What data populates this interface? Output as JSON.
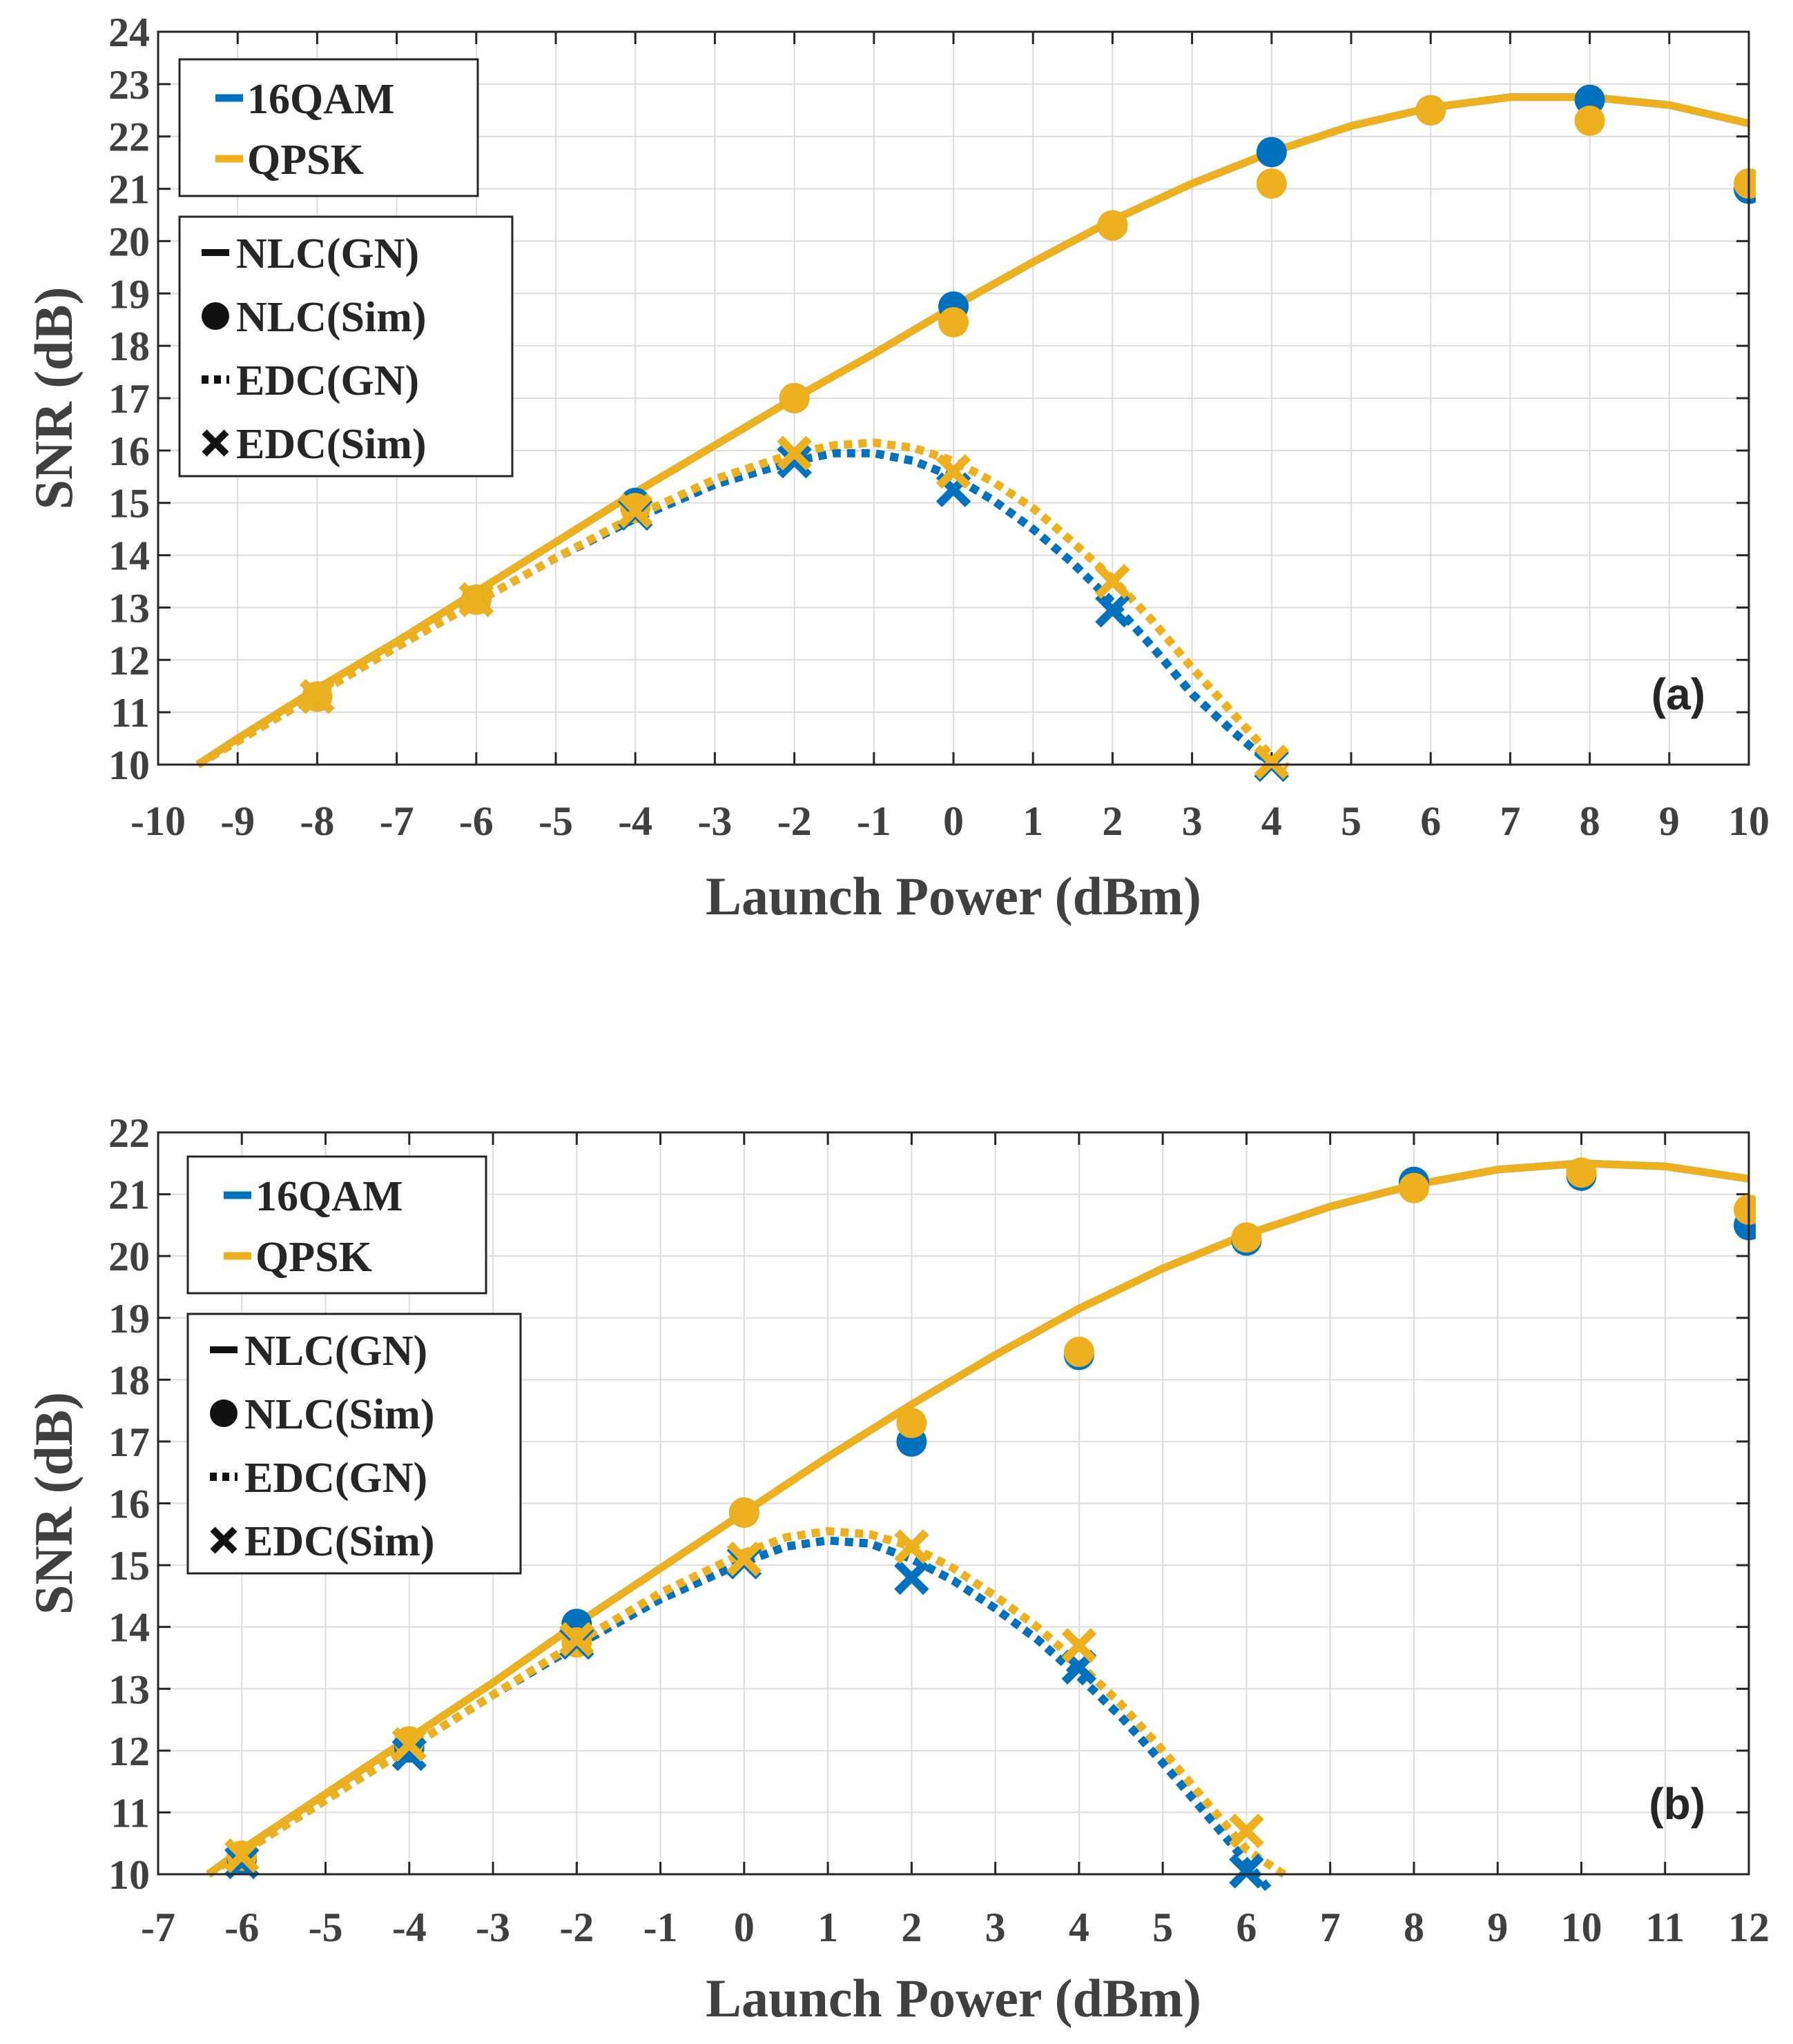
{
  "colors": {
    "16QAM": "#0072BD",
    "QPSK": "#EDB120",
    "axis": "#404040",
    "grid": "#dcdcdc"
  },
  "legend": {
    "format_entries": [
      {
        "label": "16QAM",
        "color_key": "16QAM"
      },
      {
        "label": "QPSK",
        "color_key": "QPSK"
      }
    ],
    "style_entries": [
      {
        "label": "NLC(GN)",
        "symbol": "solid-line"
      },
      {
        "label": "NLC(Sim)",
        "symbol": "circle-marker"
      },
      {
        "label": "EDC(GN)",
        "symbol": "dotted-line"
      },
      {
        "label": "EDC(Sim)",
        "symbol": "x-marker"
      }
    ]
  },
  "chart_data": [
    {
      "type": "line",
      "panel_label": "(a)",
      "xlabel": "Launch Power (dBm)",
      "ylabel": "SNR (dB)",
      "xlim": [
        -10,
        10
      ],
      "ylim": [
        10,
        24
      ],
      "xticks": [
        -10,
        -9,
        -8,
        -7,
        -6,
        -5,
        -4,
        -3,
        -2,
        -1,
        0,
        1,
        2,
        3,
        4,
        5,
        6,
        7,
        8,
        9,
        10
      ],
      "yticks": [
        10,
        11,
        12,
        13,
        14,
        15,
        16,
        17,
        18,
        19,
        20,
        21,
        22,
        23,
        24
      ],
      "grid": true,
      "legend_position": "top-left",
      "series": [
        {
          "name": "NLC(GN)",
          "format": "16QAM",
          "style": "solid",
          "x": [
            -9.5,
            -9,
            -8,
            -7,
            -6,
            -5,
            -4,
            -3,
            -2,
            -1,
            0,
            1,
            2,
            3,
            4,
            5,
            6,
            7,
            8,
            9,
            10
          ],
          "y": [
            10.0,
            10.5,
            11.45,
            12.35,
            13.3,
            14.25,
            15.2,
            16.1,
            17.0,
            17.85,
            18.75,
            19.6,
            20.4,
            21.1,
            21.7,
            22.2,
            22.55,
            22.75,
            22.75,
            22.6,
            22.25
          ]
        },
        {
          "name": "NLC(GN)",
          "format": "QPSK",
          "style": "solid",
          "x": [
            -9.5,
            -9,
            -8,
            -7,
            -6,
            -5,
            -4,
            -3,
            -2,
            -1,
            0,
            1,
            2,
            3,
            4,
            5,
            6,
            7,
            8,
            9,
            10
          ],
          "y": [
            10.0,
            10.5,
            11.45,
            12.35,
            13.3,
            14.25,
            15.2,
            16.1,
            17.0,
            17.85,
            18.75,
            19.6,
            20.4,
            21.1,
            21.7,
            22.2,
            22.55,
            22.75,
            22.75,
            22.6,
            22.25
          ]
        },
        {
          "name": "NLC(Sim)",
          "format": "16QAM",
          "style": "circle",
          "x": [
            -8,
            -6,
            -4,
            -2,
            0,
            2,
            4,
            6,
            8,
            10
          ],
          "y": [
            11.3,
            13.15,
            15.0,
            17.0,
            18.75,
            20.3,
            21.7,
            22.5,
            22.7,
            21.0
          ]
        },
        {
          "name": "NLC(Sim)",
          "format": "QPSK",
          "style": "circle",
          "x": [
            -8,
            -6,
            -4,
            -2,
            0,
            2,
            4,
            6,
            8,
            10
          ],
          "y": [
            11.3,
            13.15,
            14.9,
            17.0,
            18.45,
            20.3,
            21.1,
            22.5,
            22.3,
            21.1
          ]
        },
        {
          "name": "EDC(GN)",
          "format": "16QAM",
          "style": "dotted",
          "x": [
            -9.5,
            -9,
            -8,
            -7,
            -6,
            -5,
            -4,
            -3,
            -2,
            -1.5,
            -1,
            -0.5,
            0,
            0.5,
            1,
            1.5,
            2,
            2.5,
            3,
            3.5,
            4
          ],
          "y": [
            10.0,
            10.45,
            11.35,
            12.25,
            13.1,
            13.95,
            14.7,
            15.35,
            15.8,
            15.95,
            15.95,
            15.8,
            15.5,
            15.05,
            14.5,
            13.85,
            13.1,
            12.25,
            11.35,
            10.65,
            10.0
          ]
        },
        {
          "name": "EDC(GN)",
          "format": "QPSK",
          "style": "dotted",
          "x": [
            -9.5,
            -9,
            -8,
            -7,
            -6,
            -5,
            -4,
            -3,
            -2,
            -1.5,
            -1,
            -0.5,
            0,
            0.5,
            1,
            1.5,
            2,
            2.5,
            3,
            3.5,
            4,
            4.2
          ],
          "y": [
            10.0,
            10.45,
            11.35,
            12.25,
            13.1,
            13.95,
            14.75,
            15.45,
            15.95,
            16.1,
            16.15,
            16.05,
            15.8,
            15.4,
            14.9,
            14.25,
            13.55,
            12.75,
            11.85,
            11.0,
            10.15,
            9.95
          ]
        },
        {
          "name": "EDC(Sim)",
          "format": "16QAM",
          "style": "x",
          "x": [
            -8,
            -6,
            -4,
            -2,
            0,
            2,
            4
          ],
          "y": [
            11.3,
            13.15,
            14.8,
            15.8,
            15.25,
            12.95,
            10.0
          ]
        },
        {
          "name": "EDC(Sim)",
          "format": "QPSK",
          "style": "x",
          "x": [
            -8,
            -6,
            -4,
            -2,
            0,
            2,
            4
          ],
          "y": [
            11.3,
            13.15,
            14.85,
            15.95,
            15.6,
            13.5,
            10.05
          ]
        }
      ]
    },
    {
      "type": "line",
      "panel_label": "(b)",
      "xlabel": "Launch Power (dBm)",
      "ylabel": "SNR (dB)",
      "xlim": [
        -7,
        12
      ],
      "ylim": [
        10,
        22
      ],
      "xticks": [
        -7,
        -6,
        -5,
        -4,
        -3,
        -2,
        -1,
        0,
        1,
        2,
        3,
        4,
        5,
        6,
        7,
        8,
        9,
        10,
        11,
        12
      ],
      "yticks": [
        10,
        11,
        12,
        13,
        14,
        15,
        16,
        17,
        18,
        19,
        20,
        21,
        22
      ],
      "grid": true,
      "legend_position": "top-left",
      "series": [
        {
          "name": "NLC(GN)",
          "format": "16QAM",
          "style": "solid",
          "x": [
            -6.4,
            -6,
            -5,
            -4,
            -3,
            -2,
            -1,
            0,
            1,
            2,
            3,
            4,
            5,
            6,
            7,
            8,
            9,
            10,
            11,
            12
          ],
          "y": [
            10.0,
            10.4,
            11.3,
            12.2,
            13.1,
            14.05,
            14.95,
            15.85,
            16.75,
            17.6,
            18.4,
            19.15,
            19.8,
            20.35,
            20.8,
            21.15,
            21.4,
            21.5,
            21.45,
            21.25
          ]
        },
        {
          "name": "NLC(GN)",
          "format": "QPSK",
          "style": "solid",
          "x": [
            -6.4,
            -6,
            -5,
            -4,
            -3,
            -2,
            -1,
            0,
            1,
            2,
            3,
            4,
            5,
            6,
            7,
            8,
            9,
            10,
            11,
            12
          ],
          "y": [
            10.0,
            10.4,
            11.3,
            12.2,
            13.1,
            14.05,
            14.95,
            15.85,
            16.75,
            17.6,
            18.4,
            19.15,
            19.8,
            20.35,
            20.8,
            21.15,
            21.4,
            21.5,
            21.45,
            21.25
          ]
        },
        {
          "name": "NLC(Sim)",
          "format": "16QAM",
          "style": "circle",
          "x": [
            -6,
            -4,
            -2,
            0,
            2,
            4,
            6,
            8,
            10,
            12
          ],
          "y": [
            10.25,
            12.05,
            14.05,
            15.85,
            17.0,
            18.4,
            20.25,
            21.2,
            21.3,
            20.5
          ]
        },
        {
          "name": "NLC(Sim)",
          "format": "QPSK",
          "style": "circle",
          "x": [
            -6,
            -4,
            -2,
            0,
            2,
            4,
            6,
            8,
            10,
            12
          ],
          "y": [
            10.3,
            12.15,
            13.75,
            15.85,
            17.3,
            18.45,
            20.3,
            21.1,
            21.35,
            20.75
          ]
        },
        {
          "name": "EDC(GN)",
          "format": "16QAM",
          "style": "dotted",
          "x": [
            -6.4,
            -6,
            -5,
            -4,
            -3,
            -2,
            -1,
            0,
            0.5,
            1,
            1.5,
            2,
            2.5,
            3,
            3.5,
            4,
            4.5,
            5,
            5.5,
            6,
            6.3
          ],
          "y": [
            10.0,
            10.35,
            11.2,
            12.05,
            12.9,
            13.7,
            14.45,
            15.05,
            15.3,
            15.4,
            15.35,
            15.1,
            14.75,
            14.3,
            13.8,
            13.2,
            12.55,
            11.8,
            11.0,
            10.2,
            9.7
          ]
        },
        {
          "name": "EDC(GN)",
          "format": "QPSK",
          "style": "dotted",
          "x": [
            -6.4,
            -6,
            -5,
            -4,
            -3,
            -2,
            -1,
            0,
            0.5,
            1,
            1.5,
            2,
            2.5,
            3,
            3.5,
            4,
            4.5,
            5,
            5.5,
            6,
            6.5
          ],
          "y": [
            10.0,
            10.35,
            11.2,
            12.05,
            12.9,
            13.75,
            14.55,
            15.2,
            15.45,
            15.55,
            15.5,
            15.3,
            14.95,
            14.5,
            14.0,
            13.4,
            12.75,
            12.0,
            11.2,
            10.4,
            9.95
          ]
        },
        {
          "name": "EDC(Sim)",
          "format": "16QAM",
          "style": "x",
          "x": [
            -6,
            -4,
            -2,
            0,
            2,
            4,
            6
          ],
          "y": [
            10.2,
            11.95,
            13.75,
            15.05,
            14.8,
            13.35,
            10.05
          ]
        },
        {
          "name": "EDC(Sim)",
          "format": "QPSK",
          "style": "x",
          "x": [
            -6,
            -4,
            -2,
            0,
            2,
            4,
            6
          ],
          "y": [
            10.3,
            12.1,
            13.8,
            15.1,
            15.3,
            13.7,
            10.7
          ]
        }
      ]
    }
  ]
}
